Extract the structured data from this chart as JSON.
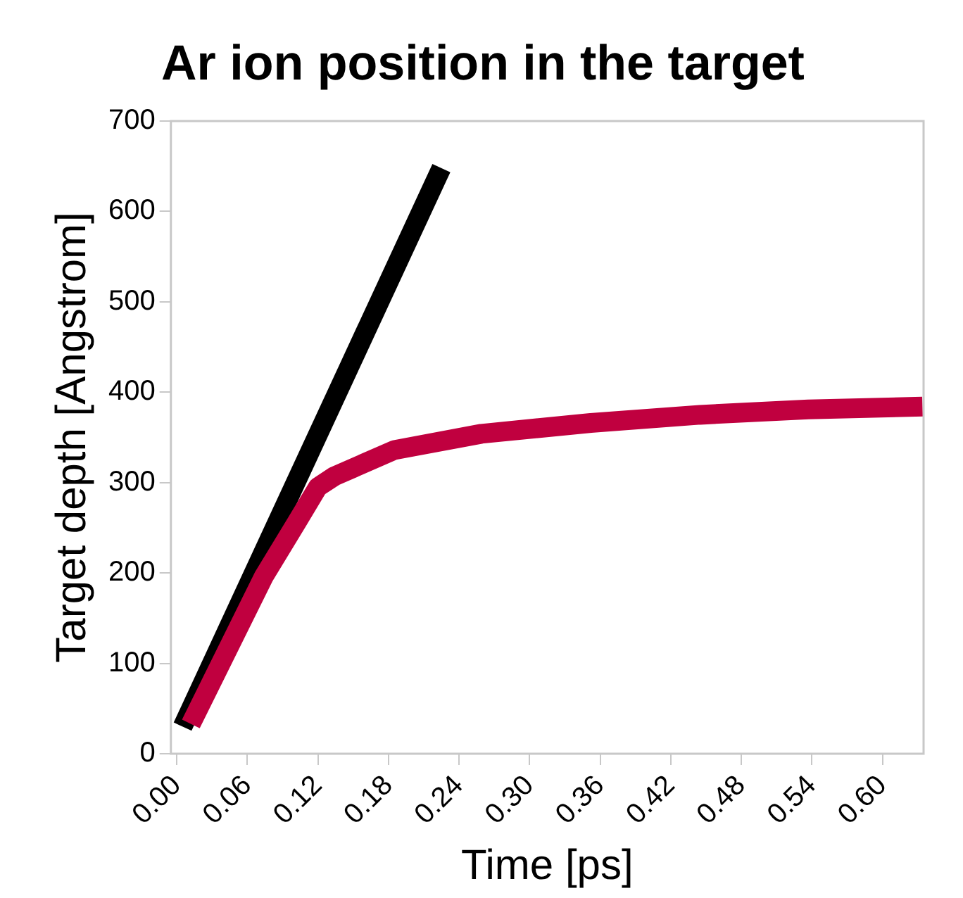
{
  "chart_data": {
    "type": "line",
    "title": "Ar ion position in the target",
    "xlabel": "Time [ps]",
    "ylabel": "Target depth [Angstrom]",
    "xlim": [
      -0.005,
      0.635
    ],
    "xticks": [
      {
        "value": 0,
        "label": "0.00"
      },
      {
        "value": 0.06,
        "label": "0.06"
      },
      {
        "value": 0.12,
        "label": "0.12"
      },
      {
        "value": 0.18,
        "label": "0.18"
      },
      {
        "value": 0.24,
        "label": "0.24"
      },
      {
        "value": 0.3,
        "label": "0.30"
      },
      {
        "value": 0.36,
        "label": "0.36"
      },
      {
        "value": 0.42,
        "label": "0.42"
      },
      {
        "value": 0.48,
        "label": "0.48"
      },
      {
        "value": 0.54,
        "label": "0.54"
      },
      {
        "value": 0.6,
        "label": "0.60"
      }
    ],
    "ylim": [
      0,
      700
    ],
    "yticks": [
      0,
      100,
      200,
      300,
      400,
      500,
      600,
      700
    ],
    "grid": false,
    "legend": false,
    "series": [
      {
        "color": "#c0003f",
        "x": [
          0.012,
          0.074,
          0.102,
          0.12,
          0.134,
          0.185,
          0.259,
          0.352,
          0.445,
          0.537,
          0.634
        ],
        "values": [
          33,
          196,
          256,
          295,
          307,
          336,
          354,
          366,
          375,
          381,
          384
        ]
      },
      {
        "color": "#000000",
        "x": [
          0.005,
          0.225
        ],
        "values": [
          30,
          648
        ]
      }
    ]
  }
}
